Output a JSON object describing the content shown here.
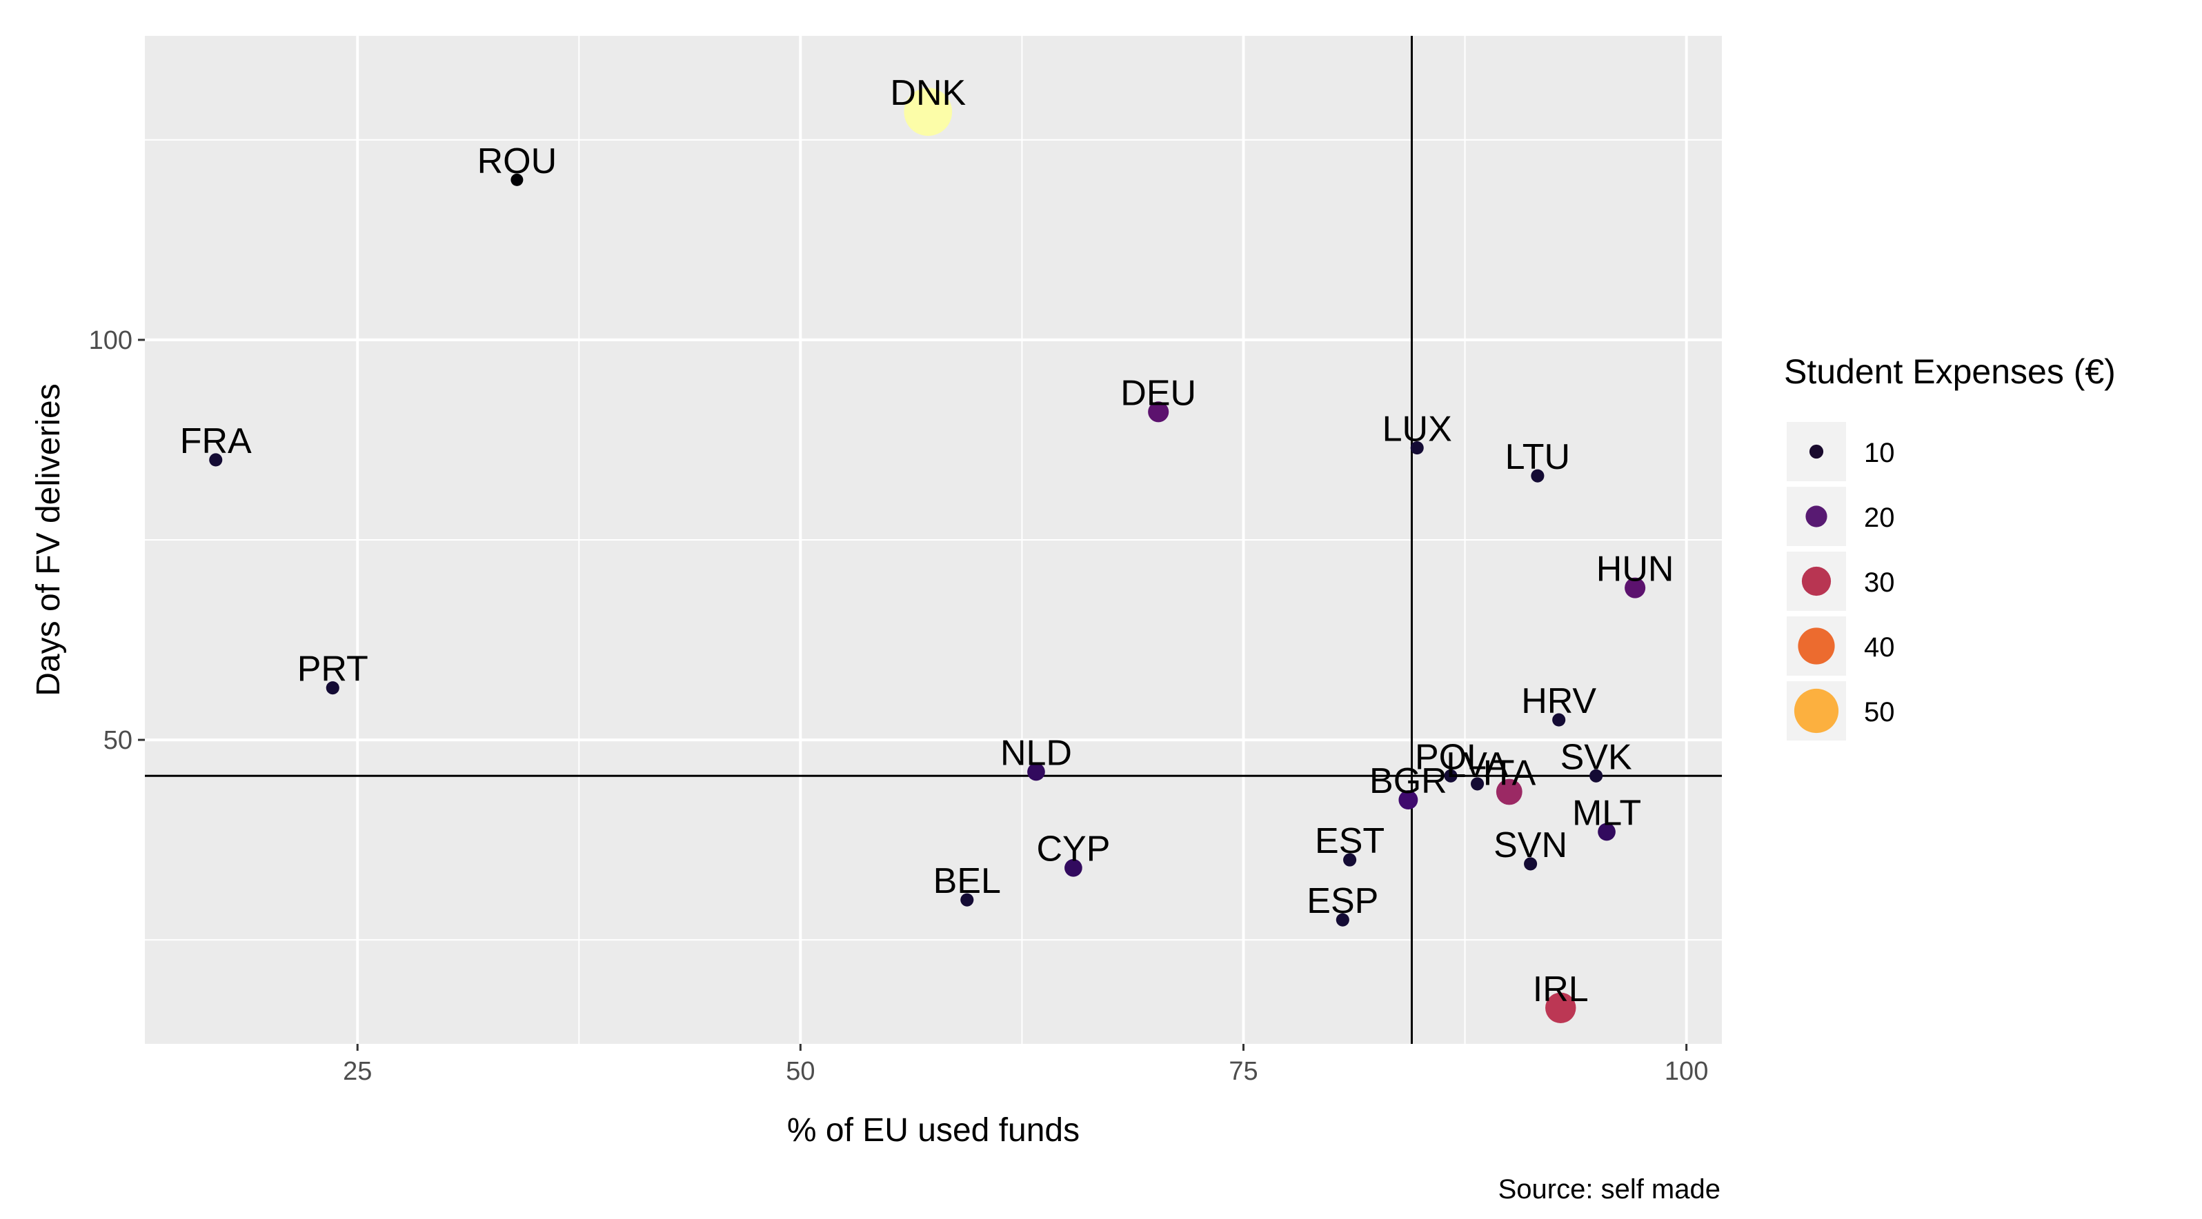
{
  "chart_data": {
    "type": "scatter",
    "xlabel": "% of EU used funds",
    "ylabel": "Days of FV deliveries",
    "caption": "Source: self made",
    "xlim": [
      13,
      102
    ],
    "ylim": [
      12,
      138
    ],
    "x_ticks": [
      25,
      50,
      75,
      100
    ],
    "y_ticks": [
      50,
      100
    ],
    "grid": true,
    "reference_lines": {
      "vline_x": 84.5,
      "hline_y": 45.5
    },
    "legend": {
      "title": "Student Expenses (€)",
      "position": "right",
      "entries": [
        {
          "label": "10",
          "value": 10,
          "color": "#1a0b2e"
        },
        {
          "label": "20",
          "value": 20,
          "color": "#581a72"
        },
        {
          "label": "30",
          "value": 30,
          "color": "#b83552"
        },
        {
          "label": "40",
          "value": 40,
          "color": "#ec6b2f"
        },
        {
          "label": "50",
          "value": 50,
          "color": "#fcb03f"
        }
      ]
    },
    "points": [
      {
        "label": "DNK",
        "x": 57.2,
        "y": 128.5,
        "expenses": 55,
        "color": "#fcfda8"
      },
      {
        "label": "ROU",
        "x": 34.0,
        "y": 120.0,
        "expenses": 8,
        "color": "#000004"
      },
      {
        "label": "FRA",
        "x": 17.0,
        "y": 85.0,
        "expenses": 9,
        "color": "#140b34"
      },
      {
        "label": "PRT",
        "x": 23.6,
        "y": 56.5,
        "expenses": 9,
        "color": "#140b34"
      },
      {
        "label": "DEU",
        "x": 70.2,
        "y": 91.0,
        "expenses": 19,
        "color": "#5c126e"
      },
      {
        "label": "LUX",
        "x": 84.8,
        "y": 86.5,
        "expenses": 9,
        "color": "#140b34"
      },
      {
        "label": "LTU",
        "x": 91.6,
        "y": 83.0,
        "expenses": 9,
        "color": "#140b34"
      },
      {
        "label": "HUN",
        "x": 97.1,
        "y": 69.0,
        "expenses": 19,
        "color": "#5c126e"
      },
      {
        "label": "HRV",
        "x": 92.8,
        "y": 52.5,
        "expenses": 9,
        "color": "#140b34"
      },
      {
        "label": "SVK",
        "x": 94.9,
        "y": 45.5,
        "expenses": 9,
        "color": "#140b34"
      },
      {
        "label": "POL",
        "x": 86.7,
        "y": 45.5,
        "expenses": 9,
        "color": "#140b34"
      },
      {
        "label": "LVA",
        "x": 88.2,
        "y": 44.5,
        "expenses": 9,
        "color": "#140b34"
      },
      {
        "label": "ITA",
        "x": 90.0,
        "y": 43.5,
        "expenses": 26,
        "color": "#9b2964"
      },
      {
        "label": "BGR",
        "x": 84.3,
        "y": 42.5,
        "expenses": 17,
        "color": "#3f0a6d"
      },
      {
        "label": "NLD",
        "x": 63.3,
        "y": 46.0,
        "expenses": 15,
        "color": "#320a5e"
      },
      {
        "label": "MLT",
        "x": 95.5,
        "y": 38.5,
        "expenses": 15,
        "color": "#320a5e"
      },
      {
        "label": "SVN",
        "x": 91.2,
        "y": 34.5,
        "expenses": 9,
        "color": "#140b34"
      },
      {
        "label": "EST",
        "x": 81.0,
        "y": 35.0,
        "expenses": 9,
        "color": "#140b34"
      },
      {
        "label": "CYP",
        "x": 65.4,
        "y": 34.0,
        "expenses": 15,
        "color": "#320a5e"
      },
      {
        "label": "BEL",
        "x": 59.4,
        "y": 30.0,
        "expenses": 9,
        "color": "#140b34"
      },
      {
        "label": "ESP",
        "x": 80.6,
        "y": 27.5,
        "expenses": 9,
        "color": "#140b34"
      },
      {
        "label": "IRL",
        "x": 92.9,
        "y": 16.5,
        "expenses": 32,
        "color": "#bc3754"
      }
    ]
  }
}
